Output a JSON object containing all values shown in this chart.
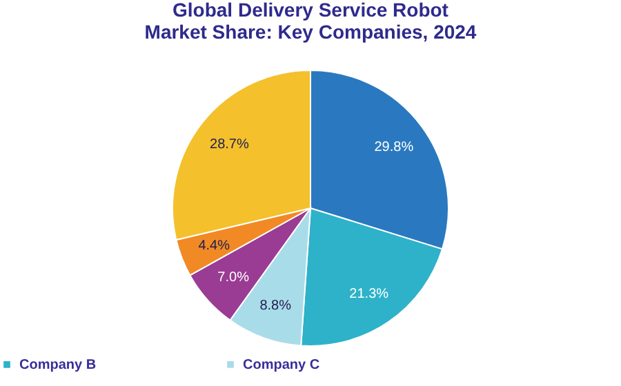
{
  "chart_data": {
    "type": "pie",
    "title": "Global Delivery Service Robot Market Share: Key Companies, 2024",
    "categories": [
      null,
      "Company B",
      "Company C",
      null,
      null,
      null
    ],
    "values": [
      29.8,
      21.3,
      8.8,
      7.0,
      4.4,
      28.7
    ],
    "value_labels": [
      "29.8%",
      "21.3%",
      "8.8%",
      "7.0%",
      "4.4%",
      "28.7%"
    ],
    "colors": [
      "#2a79c0",
      "#2db2c9",
      "#a9dce9",
      "#9a3b94",
      "#f18a25",
      "#f4c02b"
    ],
    "legend": "bottom"
  }
}
